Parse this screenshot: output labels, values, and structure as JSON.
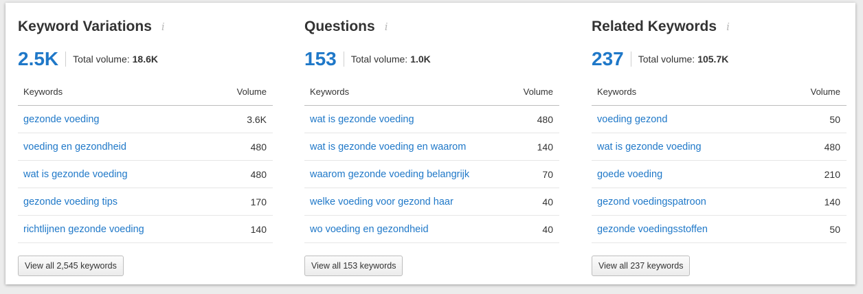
{
  "colors": {
    "accent": "#1f78c8",
    "text": "#333333",
    "info": "#b8b8b8"
  },
  "panels": [
    {
      "title": "Keyword Variations",
      "info_icon": "i",
      "count": "2.5K",
      "total_label": "Total volume:",
      "total_value": "18.6K",
      "col_keywords": "Keywords",
      "col_volume": "Volume",
      "rows": [
        {
          "keyword": "gezonde voeding",
          "volume": "3.6K"
        },
        {
          "keyword": "voeding en gezondheid",
          "volume": "480"
        },
        {
          "keyword": "wat is gezonde voeding",
          "volume": "480"
        },
        {
          "keyword": "gezonde voeding tips",
          "volume": "170"
        },
        {
          "keyword": "richtlijnen gezonde voeding",
          "volume": "140"
        }
      ],
      "button": "View all 2,545 keywords"
    },
    {
      "title": "Questions",
      "info_icon": "i",
      "count": "153",
      "total_label": "Total volume:",
      "total_value": "1.0K",
      "col_keywords": "Keywords",
      "col_volume": "Volume",
      "rows": [
        {
          "keyword": "wat is gezonde voeding",
          "volume": "480"
        },
        {
          "keyword": "wat is gezonde voeding en waarom",
          "volume": "140"
        },
        {
          "keyword": "waarom gezonde voeding belangrijk",
          "volume": "70"
        },
        {
          "keyword": "welke voeding voor gezond haar",
          "volume": "40"
        },
        {
          "keyword": "wo voeding en gezondheid",
          "volume": "40"
        }
      ],
      "button": "View all 153 keywords"
    },
    {
      "title": "Related Keywords",
      "info_icon": "i",
      "count": "237",
      "total_label": "Total volume:",
      "total_value": "105.7K",
      "col_keywords": "Keywords",
      "col_volume": "Volume",
      "rows": [
        {
          "keyword": "voeding gezond",
          "volume": "50"
        },
        {
          "keyword": "wat is gezonde voeding",
          "volume": "480"
        },
        {
          "keyword": "goede voeding",
          "volume": "210"
        },
        {
          "keyword": "gezond voedingspatroon",
          "volume": "140"
        },
        {
          "keyword": "gezonde voedingsstoffen",
          "volume": "50"
        }
      ],
      "button": "View all 237 keywords"
    }
  ]
}
